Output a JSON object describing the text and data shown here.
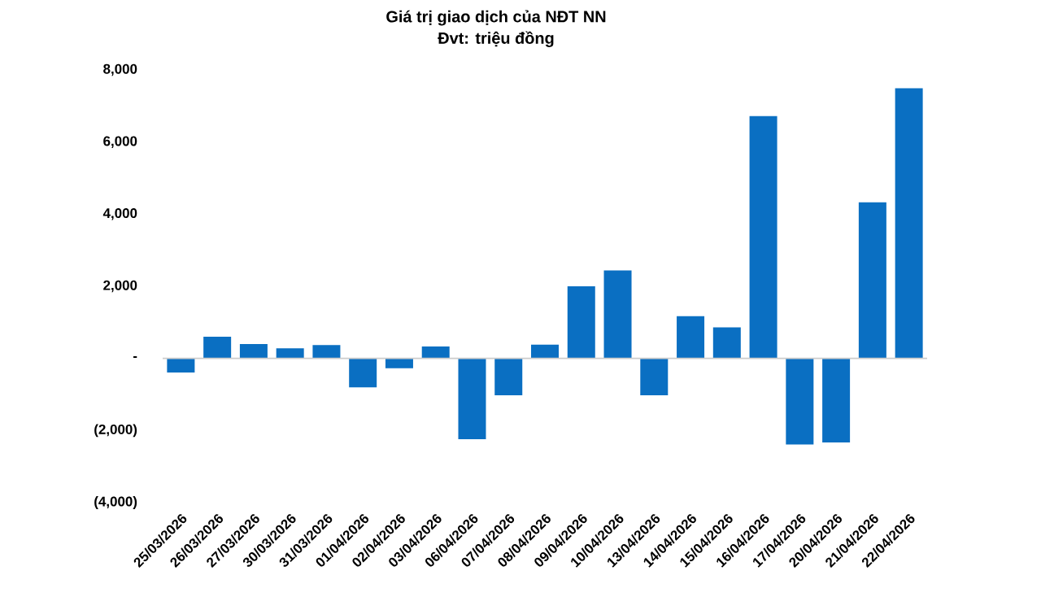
{
  "chart_data": {
    "type": "bar",
    "title": "Giá trị giao dịch của NĐT NN",
    "subtitle": "Đvt: triệu đồng",
    "categories": [
      "25/03/2026",
      "26/03/2026",
      "27/03/2026",
      "30/03/2026",
      "31/03/2026",
      "01/04/2026",
      "02/04/2026",
      "03/04/2026",
      "06/04/2026",
      "07/04/2026",
      "08/04/2026",
      "09/04/2026",
      "10/04/2026",
      "13/04/2026",
      "14/04/2026",
      "15/04/2026",
      "16/04/2026",
      "17/04/2026",
      "20/04/2026",
      "21/04/2026",
      "22/04/2026"
    ],
    "values": [
      -390,
      600,
      400,
      280,
      370,
      -800,
      -270,
      330,
      -2240,
      -1020,
      380,
      2000,
      2440,
      -1020,
      1170,
      860,
      6720,
      -2390,
      -2330,
      4330,
      7490
    ],
    "color": "#0a6fc2",
    "ylim": [
      -4000,
      8000
    ],
    "yticks": [
      {
        "value": -4000,
        "label": "(4,000)"
      },
      {
        "value": -2000,
        "label": "(2,000)"
      },
      {
        "value": 0,
        "label": "-"
      },
      {
        "value": 2000,
        "label": "2,000"
      },
      {
        "value": 4000,
        "label": "4,000"
      },
      {
        "value": 6000,
        "label": "6,000"
      },
      {
        "value": 8000,
        "label": "8,000"
      }
    ],
    "ylabel": null
  }
}
